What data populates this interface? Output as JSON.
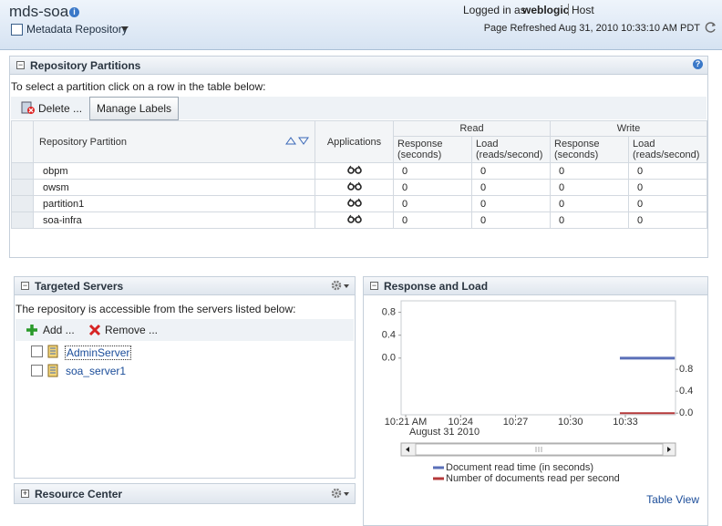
{
  "header": {
    "title": "mds-soa",
    "menu": "Metadata Repository",
    "logged_in_label": "Logged in as",
    "user": "weblogic",
    "host": "Host",
    "refreshed": "Page Refreshed Aug 31, 2010 10:33:10 AM PDT"
  },
  "partitions": {
    "title": "Repository Partitions",
    "instruction": "To select a partition click on a row in the table below:",
    "toolbar": [
      "Delete ...",
      "Manage Labels"
    ],
    "columns": {
      "name": "Repository Partition",
      "applications": "Applications",
      "read": "Read",
      "write": "Write",
      "read_response": "Response (seconds)",
      "read_load": "Load (reads/second)",
      "write_response": "Response (seconds)",
      "write_load": "Load (reads/second)"
    },
    "rows": [
      [
        "obpm",
        0,
        0,
        0,
        0
      ],
      [
        "owsm",
        0,
        0,
        0,
        0
      ],
      [
        "partition1",
        0,
        0,
        0,
        0
      ],
      [
        "soa-infra",
        0,
        0,
        0,
        0
      ]
    ]
  },
  "servers": {
    "title": "Targeted Servers",
    "instruction": "The repository is accessible from the servers listed below:",
    "toolbar": [
      "Add ...",
      "Remove ..."
    ],
    "items": [
      "AdminServer",
      "soa_server1"
    ]
  },
  "resource_center": {
    "title": "Resource Center"
  },
  "chart_panel": {
    "title": "Response and Load",
    "table_view": "Table View"
  },
  "chart_data": {
    "type": "line",
    "xlabel": "August 31 2010",
    "x": [
      632.7,
      635.7
    ],
    "xlim": [
      620.75,
      635.74
    ],
    "xticks": [
      {
        "value": 621,
        "label": "10:21 AM"
      },
      {
        "value": 624,
        "label": "10:24"
      },
      {
        "value": 627,
        "label": "10:27"
      },
      {
        "value": 630,
        "label": "10:30"
      },
      {
        "value": 633,
        "label": "10:33"
      }
    ],
    "ylim": [
      -0.99,
      1.0
    ],
    "yticks": [
      0.8,
      0.4,
      {
        "value": 0,
        "label": "0.0"
      }
    ],
    "y2lim": [
      -0.03,
      2.05
    ],
    "y2ticks": [
      0.8,
      0.4,
      {
        "value": 0,
        "label": "0.0"
      }
    ],
    "series": [
      {
        "name": "Document read time (in seconds)",
        "color": "#5a6fb8",
        "values": [
          0,
          0
        ]
      },
      {
        "name": "Number of documents read per second",
        "color": "#b5393a",
        "values": [
          0,
          0
        ],
        "axis": "y2"
      }
    ]
  }
}
